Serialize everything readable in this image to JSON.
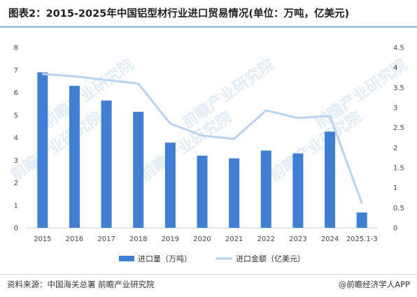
{
  "header": {
    "title": "图表2：2015-2025年中国铝型材行业进口贸易情况(单位：万吨，亿美元)"
  },
  "footer": {
    "source": "资料来源：中国海关总署 前瞻产业研究院",
    "brand": "@前瞻经济学人APP"
  },
  "watermark": {
    "text": "前瞻产业研究院"
  },
  "colors": {
    "bar": "#3e7fd6",
    "line": "#b8d3ef",
    "title_rule": "#2b6cb8"
  },
  "chart_data": {
    "type": "bar",
    "categories": [
      "2015",
      "2016",
      "2017",
      "2018",
      "2019",
      "2020",
      "2021",
      "2022",
      "2023",
      "2024",
      "2025.1-3"
    ],
    "series": [
      {
        "name": "进口量（万吨）",
        "type": "bar",
        "axis": "left",
        "values": [
          6.9,
          6.3,
          5.65,
          5.15,
          3.78,
          3.2,
          3.08,
          3.43,
          3.3,
          4.27,
          0.68
        ]
      },
      {
        "name": "进口金额（亿美元）",
        "type": "line",
        "axis": "right",
        "values": [
          3.84,
          3.78,
          3.69,
          3.6,
          2.6,
          2.3,
          2.22,
          2.93,
          2.74,
          2.79,
          0.62
        ]
      }
    ],
    "y_left": {
      "min": 0,
      "max": 8,
      "ticks": [
        "0",
        "1",
        "2",
        "3",
        "4",
        "5",
        "6",
        "7",
        "8"
      ]
    },
    "y_right": {
      "min": 0,
      "max": 4.5,
      "ticks": [
        "0",
        "0.5",
        "1",
        "1.5",
        "2",
        "2.5",
        "3",
        "3.5",
        "4",
        "4.5"
      ]
    },
    "legend": {
      "position": "bottom-center"
    },
    "grid": false
  }
}
